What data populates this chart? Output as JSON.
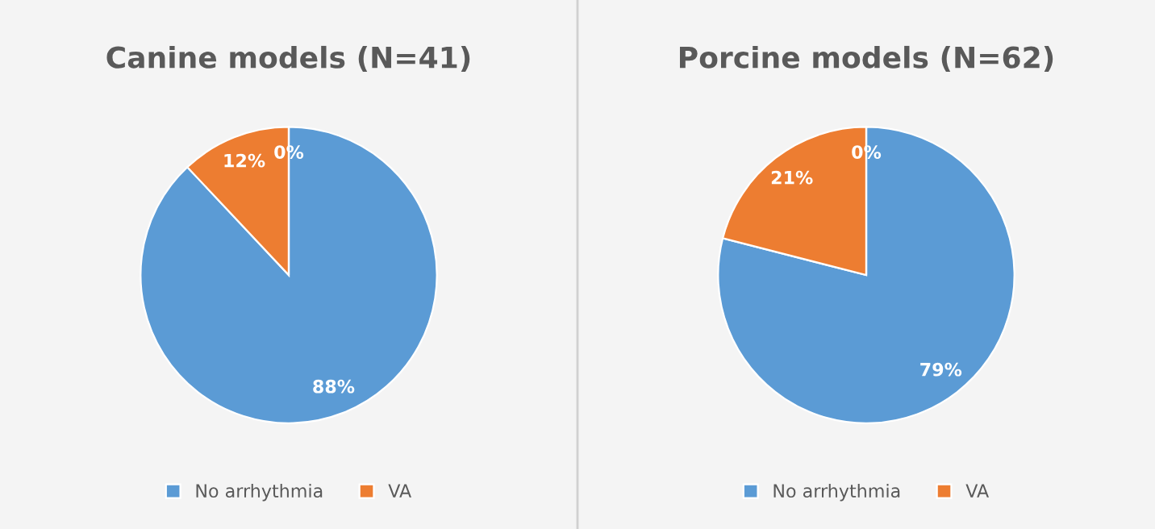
{
  "chart_data": [
    {
      "type": "pie",
      "title": "Canine models (N=41)",
      "categories": [
        "No arrhythmia",
        "VA",
        null
      ],
      "values": [
        88,
        12,
        0
      ],
      "colors": [
        "#5b9bd5",
        "#ed7d31",
        "#a5a5a5"
      ],
      "value_labels": [
        "88%",
        "12%",
        "0%"
      ],
      "legend": "bottom"
    },
    {
      "type": "pie",
      "title": "Porcine models (N=62)",
      "categories": [
        "No arrhythmia",
        "VA",
        null
      ],
      "values": [
        79,
        21,
        0
      ],
      "colors": [
        "#5b9bd5",
        "#ed7d31",
        "#a5a5a5"
      ],
      "value_labels": [
        "79%",
        "21%",
        "0%"
      ],
      "legend": "bottom"
    }
  ]
}
